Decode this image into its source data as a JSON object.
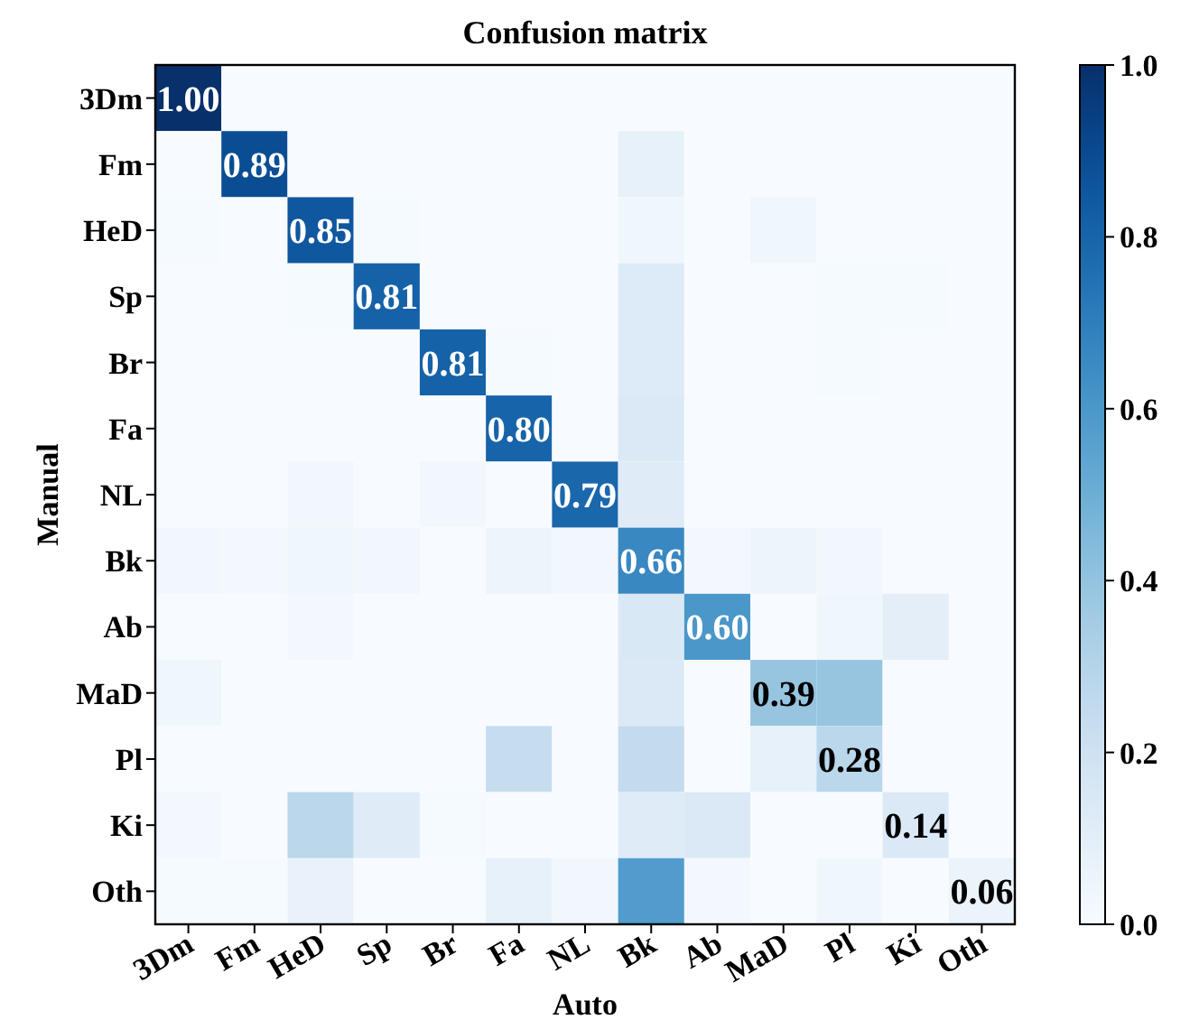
{
  "chart_data": {
    "type": "heatmap",
    "title": "Confusion matrix",
    "xlabel": "Auto",
    "ylabel": "Manual",
    "categories": [
      "3Dm",
      "Fm",
      "HeD",
      "Sp",
      "Br",
      "Fa",
      "NL",
      "Bk",
      "Ab",
      "MaD",
      "Pl",
      "Ki",
      "Oth"
    ],
    "y_categories": [
      "3Dm",
      "Fm",
      "HeD",
      "Sp",
      "Br",
      "Fa",
      "NL",
      "Bk",
      "Ab",
      "MaD",
      "Pl",
      "Ki",
      "Oth"
    ],
    "cells": [
      [
        1.0,
        0,
        0,
        0,
        0,
        0,
        0,
        0,
        0,
        0,
        0,
        0,
        0
      ],
      [
        0,
        0.89,
        0,
        0,
        0,
        0,
        0,
        0.08,
        0,
        0,
        0,
        0,
        0
      ],
      [
        0.01,
        0,
        0.85,
        0.01,
        0,
        0,
        0,
        0.04,
        0,
        0.04,
        0,
        0,
        0
      ],
      [
        0,
        0,
        0.01,
        0.81,
        0,
        0,
        0,
        0.13,
        0,
        0,
        0.01,
        0.01,
        0
      ],
      [
        0,
        0,
        0,
        0,
        0.81,
        0.01,
        0,
        0.13,
        0,
        0,
        0.01,
        0,
        0
      ],
      [
        0,
        0,
        0,
        0,
        0,
        0.8,
        0,
        0.14,
        0,
        0,
        0,
        0,
        0
      ],
      [
        0,
        0,
        0.03,
        0,
        0.03,
        0,
        0.79,
        0.12,
        0,
        0,
        0,
        0,
        0
      ],
      [
        0.03,
        0.02,
        0.04,
        0.03,
        0,
        0.05,
        0.03,
        0.66,
        0.02,
        0.05,
        0.03,
        0,
        0
      ],
      [
        0,
        0,
        0.02,
        0,
        0,
        0,
        0,
        0.15,
        0.6,
        0,
        0.04,
        0.1,
        0
      ],
      [
        0.04,
        0,
        0,
        0,
        0,
        0,
        0,
        0.14,
        0,
        0.39,
        0.39,
        0,
        0
      ],
      [
        0,
        0,
        0,
        0,
        0,
        0.24,
        0,
        0.25,
        0,
        0.08,
        0.28,
        0,
        0
      ],
      [
        0.02,
        0,
        0.28,
        0.12,
        0.01,
        0,
        0,
        0.12,
        0.14,
        0,
        0,
        0.14,
        0
      ],
      [
        0.01,
        0.01,
        0.07,
        0,
        0,
        0.08,
        0.03,
        0.58,
        0.02,
        0,
        0.04,
        0,
        0.06
      ]
    ],
    "cell_labels": [
      [
        "1.00",
        null,
        null,
        null,
        null,
        null,
        null,
        null,
        null,
        null,
        null,
        null,
        null
      ],
      [
        null,
        "0.89",
        null,
        null,
        null,
        null,
        null,
        null,
        null,
        null,
        null,
        null,
        null
      ],
      [
        null,
        null,
        "0.85",
        null,
        null,
        null,
        null,
        null,
        null,
        null,
        null,
        null,
        null
      ],
      [
        null,
        null,
        null,
        "0.81",
        null,
        null,
        null,
        null,
        null,
        null,
        null,
        null,
        null
      ],
      [
        null,
        null,
        null,
        null,
        "0.81",
        null,
        null,
        null,
        null,
        null,
        null,
        null,
        null
      ],
      [
        null,
        null,
        null,
        null,
        null,
        "0.80",
        null,
        null,
        null,
        null,
        null,
        null,
        null
      ],
      [
        null,
        null,
        null,
        null,
        null,
        null,
        "0.79",
        null,
        null,
        null,
        null,
        null,
        null
      ],
      [
        null,
        null,
        null,
        null,
        null,
        null,
        null,
        "0.66",
        null,
        null,
        null,
        null,
        null
      ],
      [
        null,
        null,
        null,
        null,
        null,
        null,
        null,
        null,
        "0.60",
        null,
        null,
        null,
        null
      ],
      [
        null,
        null,
        null,
        null,
        null,
        null,
        null,
        null,
        null,
        "0.39",
        null,
        null,
        null
      ],
      [
        null,
        null,
        null,
        null,
        null,
        null,
        null,
        null,
        null,
        null,
        "0.28",
        null,
        null
      ],
      [
        null,
        null,
        null,
        null,
        null,
        null,
        null,
        null,
        null,
        null,
        null,
        "0.14",
        null
      ],
      [
        null,
        null,
        null,
        null,
        null,
        null,
        null,
        null,
        null,
        null,
        null,
        null,
        "0.06"
      ]
    ],
    "clim": [
      0,
      1
    ],
    "cticks": [
      {
        "value": 0,
        "label": "0.0"
      },
      {
        "value": 0.2,
        "label": "0.2"
      },
      {
        "value": 0.4,
        "label": "0.4"
      },
      {
        "value": 0.6,
        "label": "0.6"
      },
      {
        "value": 0.8,
        "label": "0.8"
      },
      {
        "value": 1,
        "label": "1.0"
      }
    ]
  }
}
